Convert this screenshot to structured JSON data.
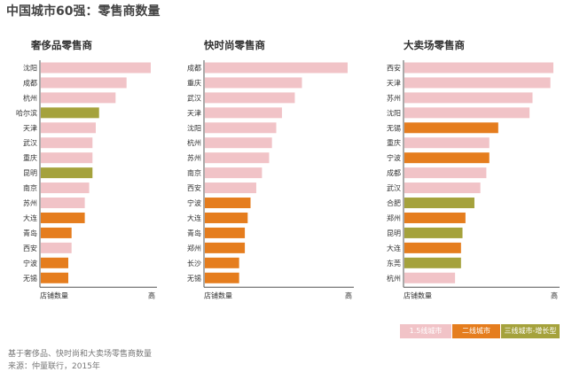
{
  "title": "中国城市60强：零售商数量",
  "chart_data": [
    {
      "type": "bar",
      "title": "奢侈品零售商",
      "xlabel": "店铺数量",
      "xlabel_high": "高",
      "categories": [
        "沈阳",
        "成都",
        "杭州",
        "哈尔滨",
        "天津",
        "武汉",
        "重庆",
        "昆明",
        "南京",
        "苏州",
        "大连",
        "青岛",
        "西安",
        "宁波",
        "无锡"
      ],
      "values": [
        100,
        78,
        68,
        53,
        50,
        47,
        47,
        47,
        44,
        40,
        40,
        28,
        28,
        25,
        25
      ],
      "tiers": [
        "t1",
        "t1",
        "t1",
        "t3",
        "t1",
        "t1",
        "t1",
        "t3",
        "t1",
        "t1",
        "t2",
        "t2",
        "t1",
        "t2",
        "t2"
      ]
    },
    {
      "type": "bar",
      "title": "快时尚零售商",
      "xlabel": "店铺数量",
      "xlabel_high": "高",
      "categories": [
        "成都",
        "重庆",
        "武汉",
        "天津",
        "沈阳",
        "杭州",
        "苏州",
        "南京",
        "西安",
        "宁波",
        "大连",
        "青岛",
        "郑州",
        "长沙",
        "无锡"
      ],
      "values": [
        100,
        68,
        63,
        54,
        50,
        47,
        45,
        40,
        36,
        32,
        30,
        28,
        28,
        24,
        24
      ],
      "tiers": [
        "t1",
        "t1",
        "t1",
        "t1",
        "t1",
        "t1",
        "t1",
        "t1",
        "t1",
        "t2",
        "t2",
        "t2",
        "t2",
        "t2",
        "t2"
      ]
    },
    {
      "type": "bar",
      "title": "大卖场零售商",
      "xlabel": "店铺数量",
      "xlabel_high": "高",
      "categories": [
        "西安",
        "天津",
        "苏州",
        "沈阳",
        "无锡",
        "重庆",
        "宁波",
        "成都",
        "武汉",
        "合肥",
        "郑州",
        "昆明",
        "大连",
        "东莞",
        "杭州"
      ],
      "values": [
        100,
        98,
        86,
        84,
        63,
        57,
        57,
        55,
        51,
        47,
        41,
        39,
        38,
        38,
        34
      ],
      "tiers": [
        "t1",
        "t1",
        "t1",
        "t1",
        "t2",
        "t1",
        "t2",
        "t1",
        "t1",
        "t3",
        "t2",
        "t3",
        "t2",
        "t3",
        "t1"
      ]
    }
  ],
  "legend": [
    {
      "tier": "t1",
      "label": "1.5线城市"
    },
    {
      "tier": "t2",
      "label": "二线城市"
    },
    {
      "tier": "t3",
      "label": "三线城市-增长型"
    }
  ],
  "colors": {
    "t1": "#f1c3c7",
    "t2": "#e57d1e",
    "t3": "#a5a23c",
    "axis": "#555555",
    "text": "#333333"
  },
  "footnote": {
    "line1": "基于奢侈品、快时尚和大卖场零售商数量",
    "line2": "来源：仲量联行，2015年"
  }
}
